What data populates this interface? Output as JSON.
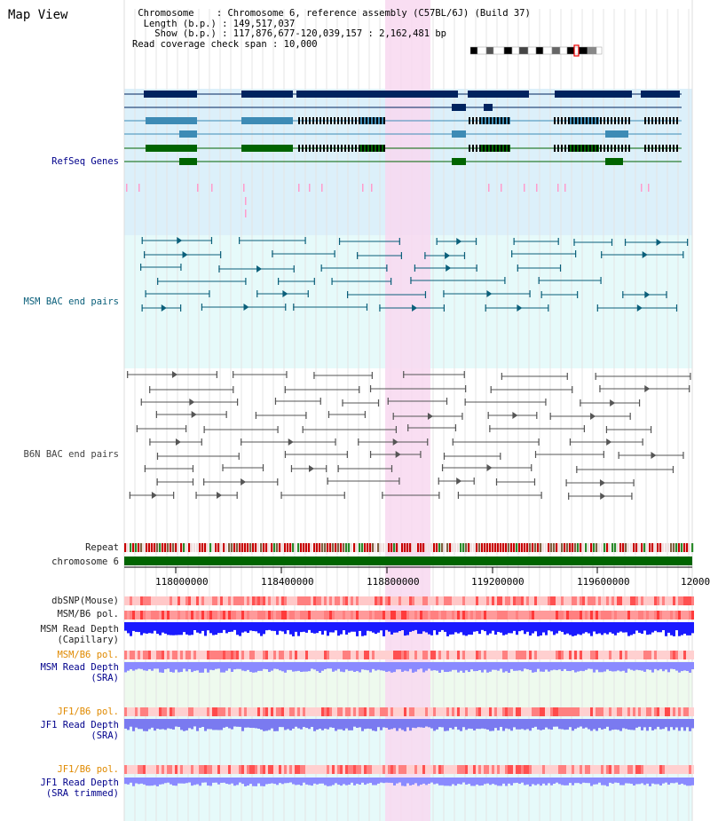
{
  "header": {
    "title": "Map View",
    "info_lines": [
      " Chromosome    : Chromosome 6, reference assembly (C57BL/6J) (Build 37)",
      "  Length (b.p.) : 149,517,037",
      "    Show (b.p.) : 117,876,677-120,039,157 : 2,162,481 bp",
      "Read coverage check span : 10,000"
    ]
  },
  "tracks": {
    "refseq": "RefSeq Genes",
    "msm_bac": "MSM BAC end pairs",
    "b6n_bac": "B6N BAC end pairs",
    "repeat": "Repeat",
    "chromosome": "chromosome 6",
    "dbsnp": "dbSNP(Mouse)",
    "msm_b6_pol": "MSM/B6 pol.",
    "msm_depth_cap_1": "MSM Read Depth",
    "msm_depth_cap_2": "(Capillary)",
    "msm_b6_pol_2": "MSM/B6 pol.",
    "msm_depth_sra_1": "MSM Read Depth",
    "msm_depth_sra_2": "(SRA)",
    "jf1_b6_pol": "JF1/B6 pol.",
    "jf1_depth_sra_1": "JF1 Read Depth",
    "jf1_depth_sra_2": "(SRA)",
    "jf1_b6_pol_2": "JF1/B6 pol.",
    "jf1_depth_trim_1": "JF1 Read Depth",
    "jf1_depth_trim_2": "(SRA trimmed)"
  },
  "axis": {
    "ticks": [
      "118000000",
      "118400000",
      "118800000",
      "119200000",
      "119600000",
      "12000"
    ]
  },
  "colors": {
    "refseq_bg": "#dcf0fa",
    "bac_bg": "#e6fafa",
    "highlight": "#f8d8f0",
    "gene_navy": "#00235f",
    "gene_steel": "#3d8bb5",
    "gene_green": "#006400",
    "msm_line": "#0a5f7a",
    "b6n_line": "#555555",
    "chromosome": "#006400"
  }
}
